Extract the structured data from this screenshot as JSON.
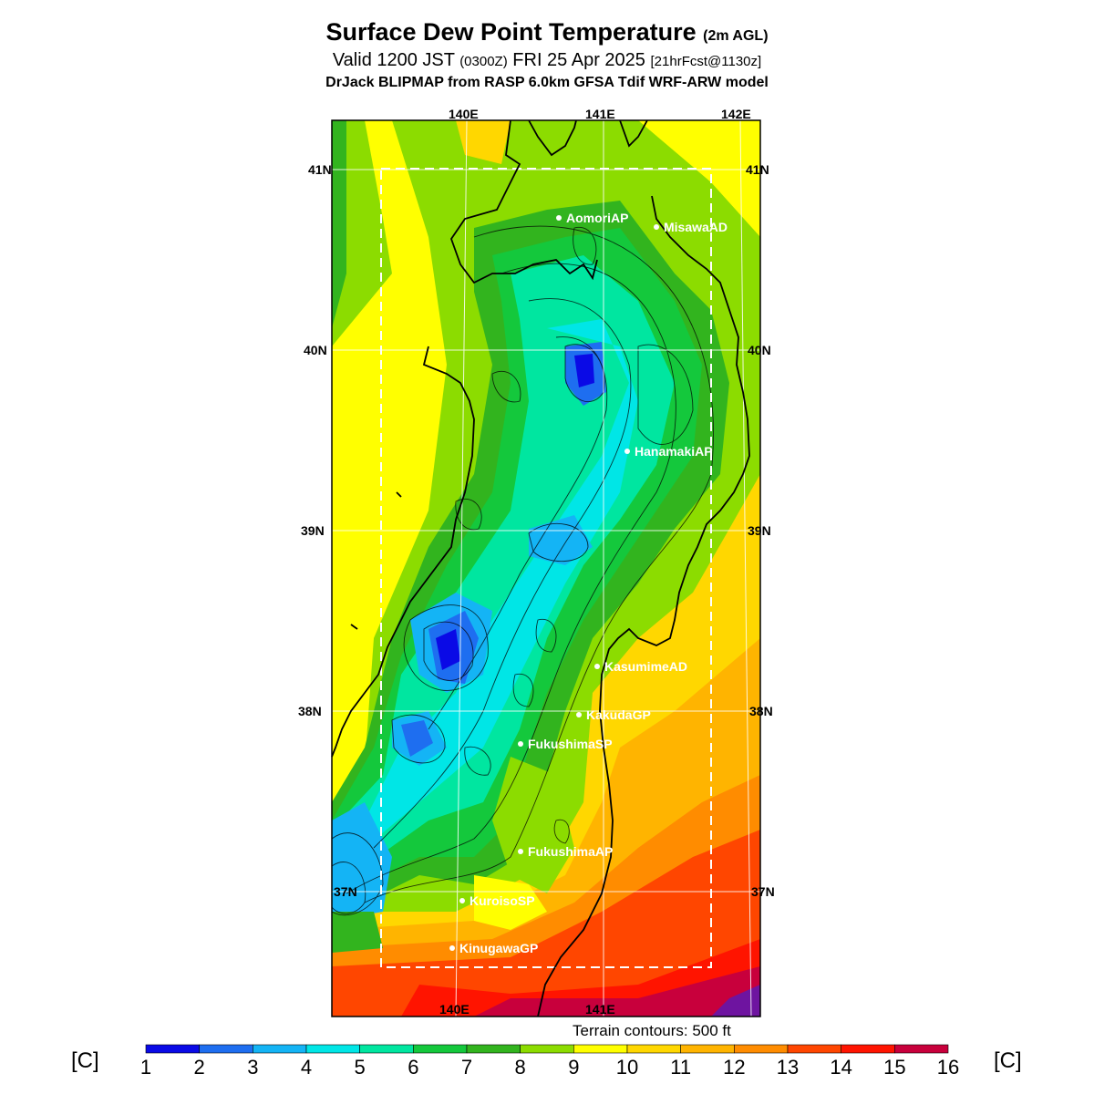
{
  "title": {
    "main": "Surface Dew Point Temperature",
    "main_suffix": "(2m AGL)",
    "valid_prefix": "Valid 1200 JST",
    "valid_utc": "(0300Z)",
    "valid_date": "FRI 25 Apr 2025",
    "forecast": "[21hrFcst@1130z]",
    "model": "DrJack BLIPMAP from RASP 6.0km GFSA Tdif WRF-ARW model"
  },
  "map": {
    "lon_labels_top": [
      "140E",
      "141E",
      "142E"
    ],
    "lon_labels_bottom": [
      "140E",
      "141E"
    ],
    "lat_labels": [
      "41N",
      "40N",
      "39N",
      "38N",
      "37N"
    ],
    "stations": [
      {
        "name": "AomoriAP"
      },
      {
        "name": "MisawaAD"
      },
      {
        "name": "HanamakiAP"
      },
      {
        "name": "KasumimeAD"
      },
      {
        "name": "KakudaGP"
      },
      {
        "name": "FukushimaSP"
      },
      {
        "name": "FukushimaAP"
      },
      {
        "name": "KuroisoSP"
      },
      {
        "name": "KinugawaGP"
      }
    ]
  },
  "legend": {
    "unit_left": "[C]",
    "unit_right": "[C]",
    "terrain_note": "Terrain contours: 500 ft",
    "ticks": [
      "1",
      "2",
      "3",
      "4",
      "5",
      "6",
      "7",
      "8",
      "9",
      "10",
      "11",
      "12",
      "13",
      "14",
      "15",
      "16"
    ],
    "colors": [
      "#0a0ae6",
      "#1e6ef0",
      "#14b4f5",
      "#00e6e6",
      "#00e6a0",
      "#14c83c",
      "#32b41e",
      "#8cdc00",
      "#ffff00",
      "#ffd700",
      "#ffb400",
      "#ff8c00",
      "#ff4600",
      "#ff1400",
      "#c8003c",
      "#8c0064",
      "#6e14a0"
    ]
  }
}
